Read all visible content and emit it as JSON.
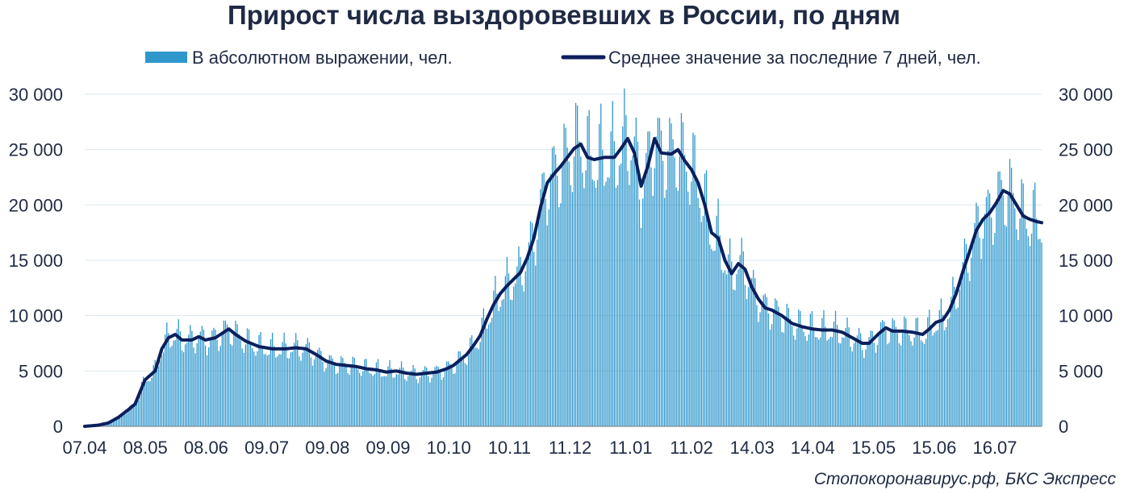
{
  "chart_data": {
    "type": "bar",
    "title": "Прирост числа выздоровевших в России, по дням",
    "series": [
      {
        "name": "В абсолютном выражении, чел.",
        "kind": "bar",
        "color": "#2e97cc"
      },
      {
        "name": "Среднее значение за последние 7 дней, чел.",
        "kind": "line",
        "color": "#0b1f5c"
      }
    ],
    "x_tick_labels": [
      "07.04",
      "08.05",
      "08.06",
      "09.07",
      "09.08",
      "09.09",
      "10.10",
      "10.11",
      "11.12",
      "11.01",
      "11.02",
      "14.03",
      "14.04",
      "15.05",
      "15.06",
      "16.07"
    ],
    "ylim": [
      0,
      30000
    ],
    "y_tick_labels": [
      "0",
      "5 000",
      "10 000",
      "15 000",
      "20 000",
      "25 000",
      "30 000"
    ],
    "grid": true,
    "legend_position": "top",
    "avg_7day_anchors": [
      [
        0,
        0
      ],
      [
        8,
        100
      ],
      [
        14,
        300
      ],
      [
        20,
        800
      ],
      [
        26,
        1500
      ],
      [
        30,
        2000
      ],
      [
        36,
        4200
      ],
      [
        42,
        5000
      ],
      [
        46,
        7000
      ],
      [
        50,
        8000
      ],
      [
        54,
        8300
      ],
      [
        58,
        7800
      ],
      [
        64,
        7800
      ],
      [
        68,
        8100
      ],
      [
        72,
        7800
      ],
      [
        78,
        8000
      ],
      [
        82,
        8400
      ],
      [
        86,
        8800
      ],
      [
        90,
        8300
      ],
      [
        96,
        7700
      ],
      [
        104,
        7200
      ],
      [
        112,
        7000
      ],
      [
        120,
        7000
      ],
      [
        126,
        7100
      ],
      [
        132,
        7000
      ],
      [
        138,
        6500
      ],
      [
        144,
        5900
      ],
      [
        150,
        5600
      ],
      [
        156,
        5500
      ],
      [
        162,
        5400
      ],
      [
        168,
        5200
      ],
      [
        174,
        5100
      ],
      [
        180,
        4900
      ],
      [
        186,
        5000
      ],
      [
        192,
        4800
      ],
      [
        198,
        4700
      ],
      [
        204,
        4800
      ],
      [
        210,
        4900
      ],
      [
        216,
        5200
      ],
      [
        220,
        5500
      ],
      [
        224,
        6000
      ],
      [
        228,
        6500
      ],
      [
        232,
        7300
      ],
      [
        236,
        8200
      ],
      [
        240,
        9700
      ],
      [
        244,
        11000
      ],
      [
        248,
        12000
      ],
      [
        252,
        12700
      ],
      [
        256,
        13300
      ],
      [
        260,
        13900
      ],
      [
        264,
        15200
      ],
      [
        268,
        17000
      ],
      [
        272,
        19800
      ],
      [
        276,
        22000
      ],
      [
        280,
        22800
      ],
      [
        284,
        23500
      ],
      [
        288,
        24300
      ],
      [
        292,
        25100
      ],
      [
        296,
        25500
      ],
      [
        300,
        24300
      ],
      [
        304,
        24100
      ],
      [
        310,
        24300
      ],
      [
        316,
        24300
      ],
      [
        320,
        25100
      ],
      [
        324,
        26000
      ],
      [
        328,
        24700
      ],
      [
        332,
        21700
      ],
      [
        336,
        23500
      ],
      [
        340,
        26000
      ],
      [
        344,
        24700
      ],
      [
        350,
        24600
      ],
      [
        354,
        25000
      ],
      [
        358,
        24000
      ],
      [
        362,
        23200
      ],
      [
        366,
        22000
      ],
      [
        370,
        20000
      ],
      [
        374,
        17500
      ],
      [
        378,
        17000
      ],
      [
        382,
        15000
      ],
      [
        386,
        13800
      ],
      [
        390,
        14700
      ],
      [
        394,
        14200
      ],
      [
        398,
        12600
      ],
      [
        402,
        11500
      ],
      [
        406,
        10700
      ],
      [
        410,
        10500
      ],
      [
        416,
        10000
      ],
      [
        422,
        9300
      ],
      [
        428,
        9000
      ],
      [
        434,
        8800
      ],
      [
        440,
        8700
      ],
      [
        446,
        8700
      ],
      [
        452,
        8500
      ],
      [
        458,
        8000
      ],
      [
        464,
        7500
      ],
      [
        468,
        7500
      ],
      [
        474,
        8400
      ],
      [
        478,
        8900
      ],
      [
        482,
        8600
      ],
      [
        488,
        8600
      ],
      [
        494,
        8500
      ],
      [
        500,
        8300
      ],
      [
        504,
        8800
      ],
      [
        508,
        9400
      ],
      [
        512,
        9600
      ],
      [
        516,
        10500
      ],
      [
        520,
        12000
      ],
      [
        524,
        14000
      ],
      [
        528,
        15800
      ],
      [
        532,
        17700
      ],
      [
        536,
        18700
      ],
      [
        540,
        19300
      ],
      [
        544,
        20200
      ],
      [
        548,
        21300
      ],
      [
        552,
        21000
      ],
      [
        556,
        20000
      ],
      [
        560,
        19000
      ],
      [
        564,
        18700
      ],
      [
        568,
        18500
      ],
      [
        571,
        18400
      ]
    ]
  },
  "source": "Стопокоронавирус.рф, БКС Экспресс"
}
